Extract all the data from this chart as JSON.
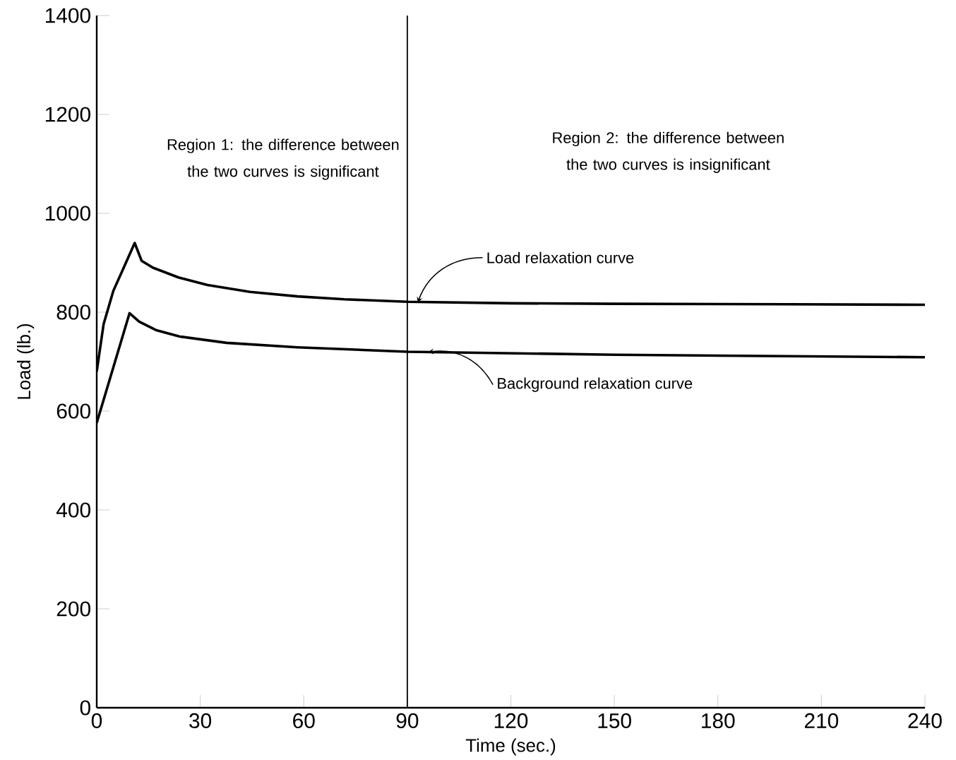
{
  "chart_data": {
    "type": "line",
    "xlabel": "Time (sec.)",
    "ylabel": "Load (lb.)",
    "xlim": [
      0,
      240
    ],
    "ylim": [
      0,
      1400
    ],
    "xticks": [
      0,
      30,
      60,
      90,
      120,
      150,
      180,
      210,
      240
    ],
    "yticks": [
      0,
      200,
      400,
      600,
      800,
      1000,
      1200,
      1400
    ],
    "grid": false,
    "marker": "none",
    "line_style": "solid",
    "series": [
      {
        "color": "#000000",
        "x": [
          0,
          2,
          4.8,
          7.5,
          11,
          13,
          16.3,
          23.8,
          32.1,
          44.4,
          58.2,
          71.8,
          90,
          120,
          150,
          200,
          240
        ],
        "values": [
          680,
          776,
          843,
          885,
          940,
          904,
          890,
          870,
          855,
          841,
          832,
          826,
          821,
          818,
          817,
          816,
          815
        ]
      },
      {
        "color": "#000000",
        "x": [
          0,
          9.5,
          12.3,
          17.1,
          23.9,
          37.6,
          58.2,
          90,
          120,
          150,
          200,
          240
        ],
        "values": [
          576,
          798,
          781,
          764,
          751,
          738,
          729,
          720,
          717,
          714,
          711,
          709
        ]
      }
    ],
    "ref_lines": [
      {
        "axis": "x",
        "value": 90
      }
    ],
    "annotations": [
      "Region 1: the difference between the two curves is significant",
      "Region 2: the difference between the two curves is insignificant",
      {
        "text": "Load relaxation curve",
        "x": 93,
        "y": 819
      },
      {
        "text": "Background relaxation curve",
        "x": 96,
        "y": 719
      }
    ]
  }
}
